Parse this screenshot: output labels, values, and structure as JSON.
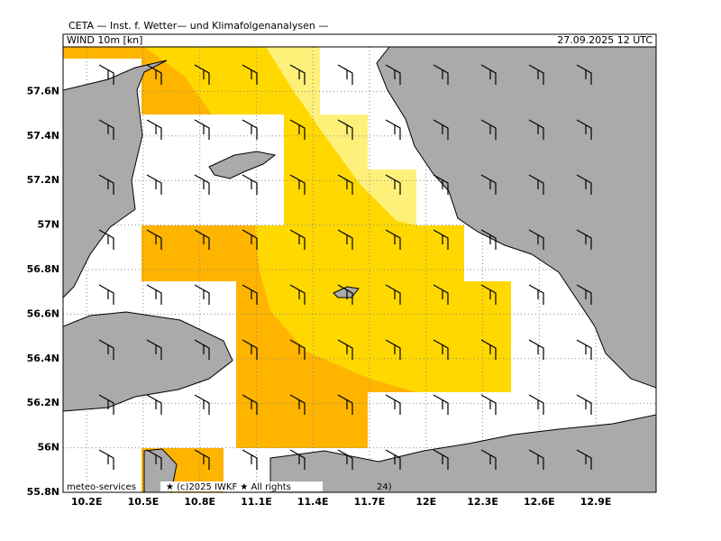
{
  "header": {
    "title": "CETA — Inst. f. Wetter— und Klimafolgenanalysen —",
    "field": "WIND 10m [kn]",
    "valid_time": "27.09.2025 12 UTC"
  },
  "map": {
    "lat_range": [
      55.8,
      57.8
    ],
    "lon_range": [
      10.075,
      13.22
    ],
    "lat_ticks": [
      {
        "value": 57.6,
        "label": "57.6N"
      },
      {
        "value": 57.4,
        "label": "57.4N"
      },
      {
        "value": 57.2,
        "label": "57.2N"
      },
      {
        "value": 57,
        "label": "57N"
      },
      {
        "value": 56.8,
        "label": "56.8N"
      },
      {
        "value": 56.6,
        "label": "56.6N"
      },
      {
        "value": 56.4,
        "label": "56.4N"
      },
      {
        "value": 56.2,
        "label": "56.2N"
      },
      {
        "value": 56,
        "label": "56N"
      },
      {
        "value": 55.8,
        "label": "55.8N"
      }
    ],
    "lon_ticks": [
      {
        "value": 10.2,
        "label": "10.2E"
      },
      {
        "value": 10.5,
        "label": "10.5E"
      },
      {
        "value": 10.8,
        "label": "10.8E"
      },
      {
        "value": 11.1,
        "label": "11.1E"
      },
      {
        "value": 11.4,
        "label": "11.4E"
      },
      {
        "value": 11.7,
        "label": "11.7E"
      },
      {
        "value": 12,
        "label": "12E"
      },
      {
        "value": 12.3,
        "label": "12.3E"
      },
      {
        "value": 12.6,
        "label": "12.6E"
      },
      {
        "value": 12.9,
        "label": "12.9E"
      }
    ]
  },
  "footer": {
    "source": "meteo-services",
    "copyright": "★ (c)2025 IWKF ★ All rights",
    "suffix": "24)"
  }
}
